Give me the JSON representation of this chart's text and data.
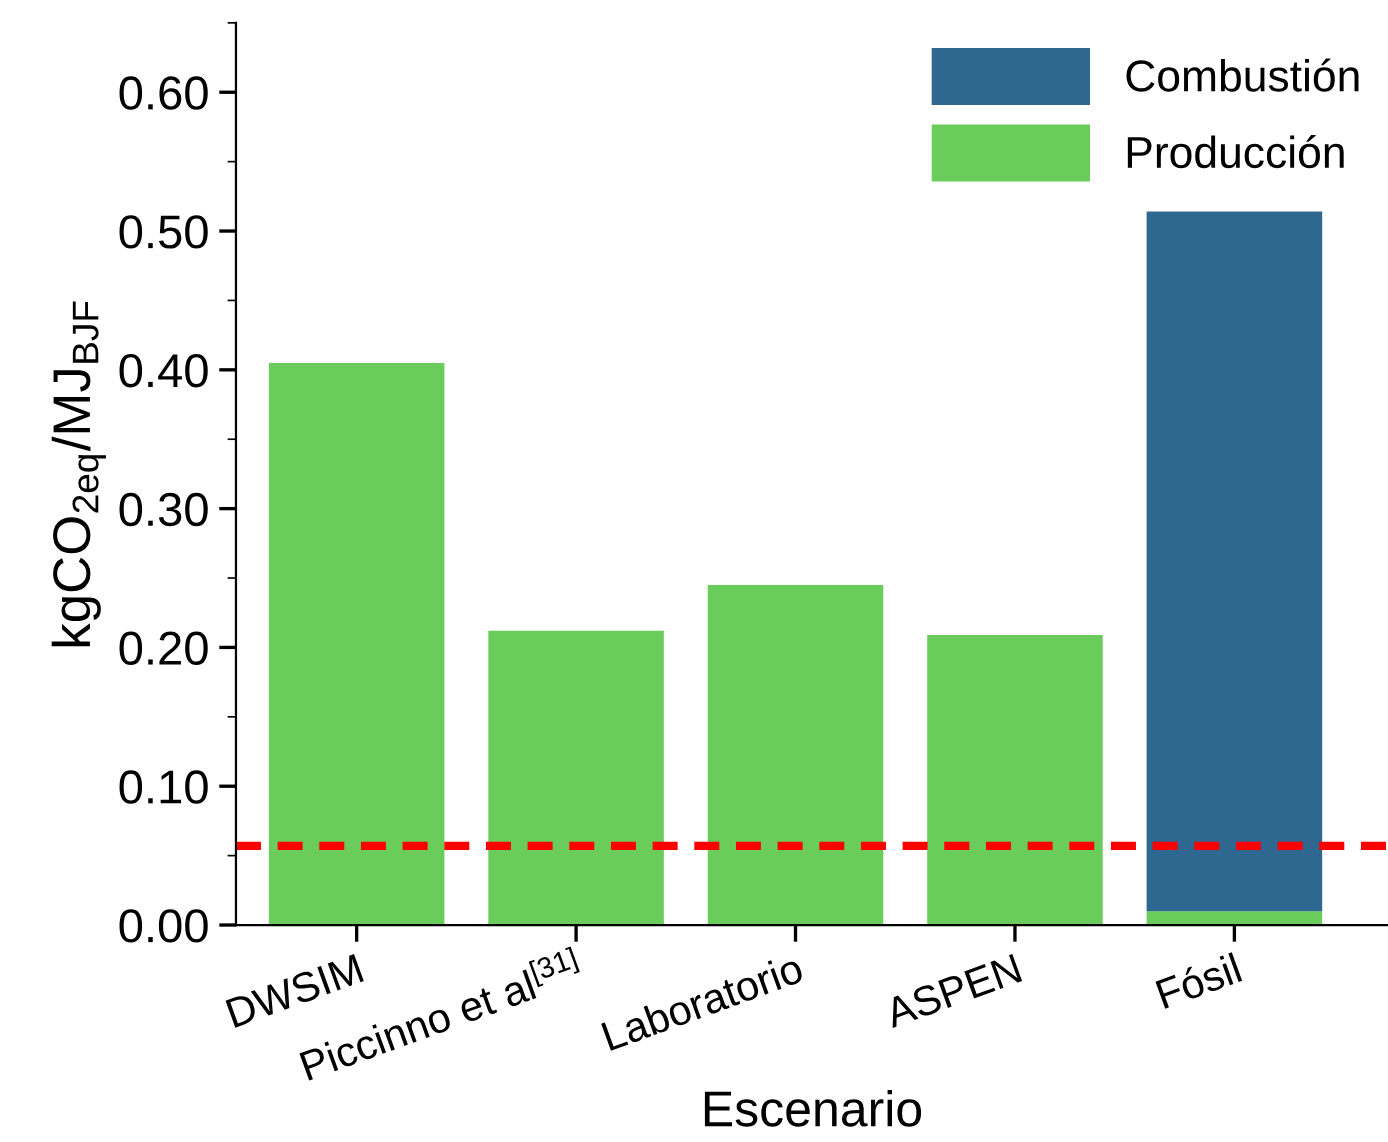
{
  "chart_data": {
    "type": "bar",
    "stacked": true,
    "xlabel": "Escenario",
    "ylabel": "kgCO$_{2eq}$/MJ$_{BJF}$",
    "categories": [
      "DWSIM",
      "Piccinno et al$^{[31]}$",
      "Laboratorio",
      "ASPEN",
      "Fósil"
    ],
    "series": [
      {
        "name": "Producción",
        "color": "#6acc5a",
        "values": [
          0.405,
          0.212,
          0.245,
          0.209,
          0.01
        ]
      },
      {
        "name": "Combustión",
        "color": "#2e6891",
        "values": [
          0,
          0,
          0,
          0,
          0.504
        ]
      }
    ],
    "ylim": [
      0,
      0.65
    ],
    "yticks": [
      {
        "value": 0,
        "label": "0.00"
      },
      {
        "value": 0.1,
        "label": "0.10"
      },
      {
        "value": 0.2,
        "label": "0.20"
      },
      {
        "value": 0.3,
        "label": "0.30"
      },
      {
        "value": 0.4,
        "label": "0.40"
      },
      {
        "value": 0.5,
        "label": "0.50"
      },
      {
        "value": 0.6,
        "label": "0.60"
      }
    ],
    "ref_lines": [
      {
        "axis": "y",
        "value": 0.057,
        "color": "#ff0000",
        "line_style": "dashed"
      }
    ],
    "legend": "top right",
    "grid": false
  }
}
